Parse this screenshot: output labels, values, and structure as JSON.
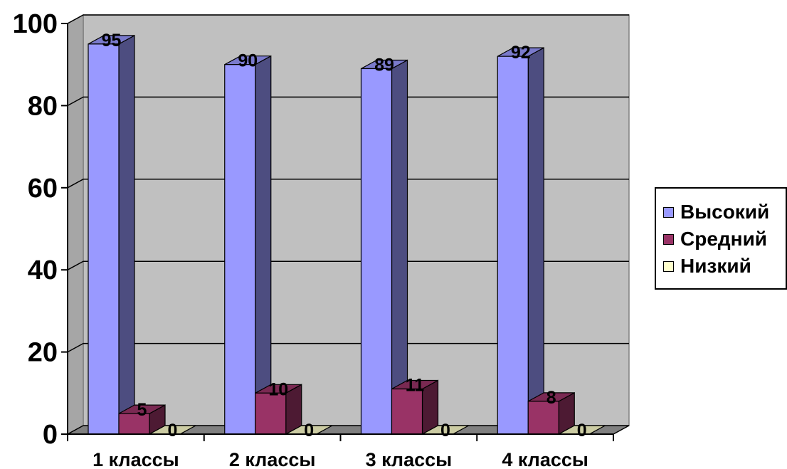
{
  "chart_data": {
    "type": "bar",
    "style": "3d-clustered-column",
    "categories": [
      "1 классы",
      "2 классы",
      "3 классы",
      "4 классы"
    ],
    "series": [
      {
        "name": "Высокий",
        "values": [
          95,
          90,
          89,
          92
        ],
        "color": "#9999ff"
      },
      {
        "name": "Средний",
        "values": [
          5,
          10,
          11,
          8
        ],
        "color": "#993366"
      },
      {
        "name": "Низкий",
        "values": [
          0,
          0,
          0,
          0
        ],
        "color": "#ffffcc"
      }
    ],
    "yticks": [
      0,
      20,
      40,
      60,
      80,
      100
    ],
    "ylim": [
      0,
      100
    ],
    "grid": true,
    "legend_position": "right",
    "colors": {
      "plot_wall": "#c0c0c0",
      "floor": "#808080",
      "gridline": "#000000"
    }
  }
}
